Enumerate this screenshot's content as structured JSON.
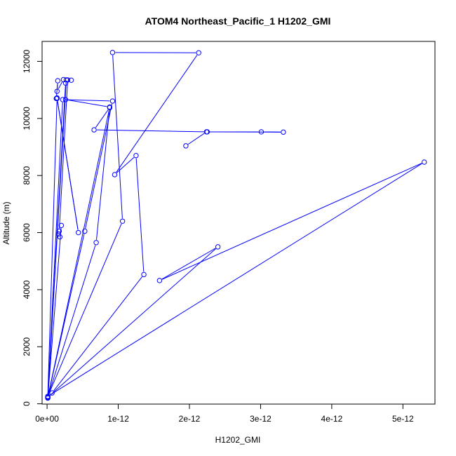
{
  "chart_data": {
    "type": "line",
    "title": "ATOM4 Northeast_Pacific_1 H1202_GMI",
    "xlabel": "H1202_GMI",
    "ylabel": "Altitude (m)",
    "xlim": [
      -7e-14,
      5.45e-12
    ],
    "ylim": [
      -10,
      12700
    ],
    "x_ticks": [
      0,
      1e-12,
      2e-12,
      3e-12,
      4e-12,
      5e-12
    ],
    "x_tick_labels": [
      "0e+00",
      "1e-12",
      "2e-12",
      "3e-12",
      "4e-12",
      "5e-12"
    ],
    "y_ticks": [
      0,
      2000,
      4000,
      6000,
      8000,
      10000,
      12000
    ],
    "y_tick_labels": [
      "0",
      "2000",
      "4000",
      "6000",
      "8000",
      "10000",
      "12000"
    ],
    "grid": false,
    "line_color": "#0000ff",
    "marker": "open-circle",
    "series": [
      {
        "points": [
          [
            1e-14,
            200
          ],
          [
            7e-14,
            380
          ],
          [
            1.36e-12,
            4530
          ],
          [
            1.25e-12,
            8700
          ],
          [
            9.5e-13,
            8030
          ],
          [
            2.13e-12,
            12300
          ],
          [
            9.2e-13,
            12310
          ],
          [
            1.06e-12,
            6400
          ],
          [
            1e-14,
            260
          ],
          [
            5.3e-12,
            8470
          ],
          [
            1.58e-12,
            4320
          ],
          [
            2.4e-12,
            5500
          ],
          [
            1e-14,
            230
          ],
          [
            8.8e-13,
            10380
          ],
          [
            6.6e-13,
            9600
          ],
          [
            2.25e-12,
            9530
          ],
          [
            3.32e-12,
            9520
          ],
          [
            3.01e-12,
            9530
          ],
          [
            2.24e-12,
            9530
          ],
          [
            1.95e-12,
            9040
          ]
        ]
      },
      {
        "points": [
          [
            1e-14,
            220
          ],
          [
            2e-13,
            6250
          ],
          [
            1.8e-13,
            5850
          ],
          [
            1.6e-13,
            5950
          ],
          [
            1.7e-13,
            6050
          ],
          [
            2.9e-13,
            11350
          ],
          [
            2.3e-13,
            11360
          ],
          [
            1.4e-13,
            10950
          ],
          [
            1.5e-13,
            11320
          ],
          [
            1.3e-13,
            10700
          ],
          [
            1.4e-13,
            10720
          ],
          [
            4.4e-13,
            6000
          ],
          [
            1.4e-13,
            10700
          ],
          [
            1e-14,
            240
          ],
          [
            2.7e-13,
            11350
          ],
          [
            3.4e-13,
            11340
          ],
          [
            2.6e-13,
            11240
          ],
          [
            1e-14,
            210
          ],
          [
            2.2e-13,
            10660
          ],
          [
            9.2e-13,
            10610
          ],
          [
            5.3e-13,
            6050
          ],
          [
            1e-14,
            230
          ],
          [
            6.9e-13,
            5650
          ],
          [
            8.8e-13,
            10400
          ],
          [
            2.6e-13,
            10660
          ]
        ]
      }
    ]
  }
}
